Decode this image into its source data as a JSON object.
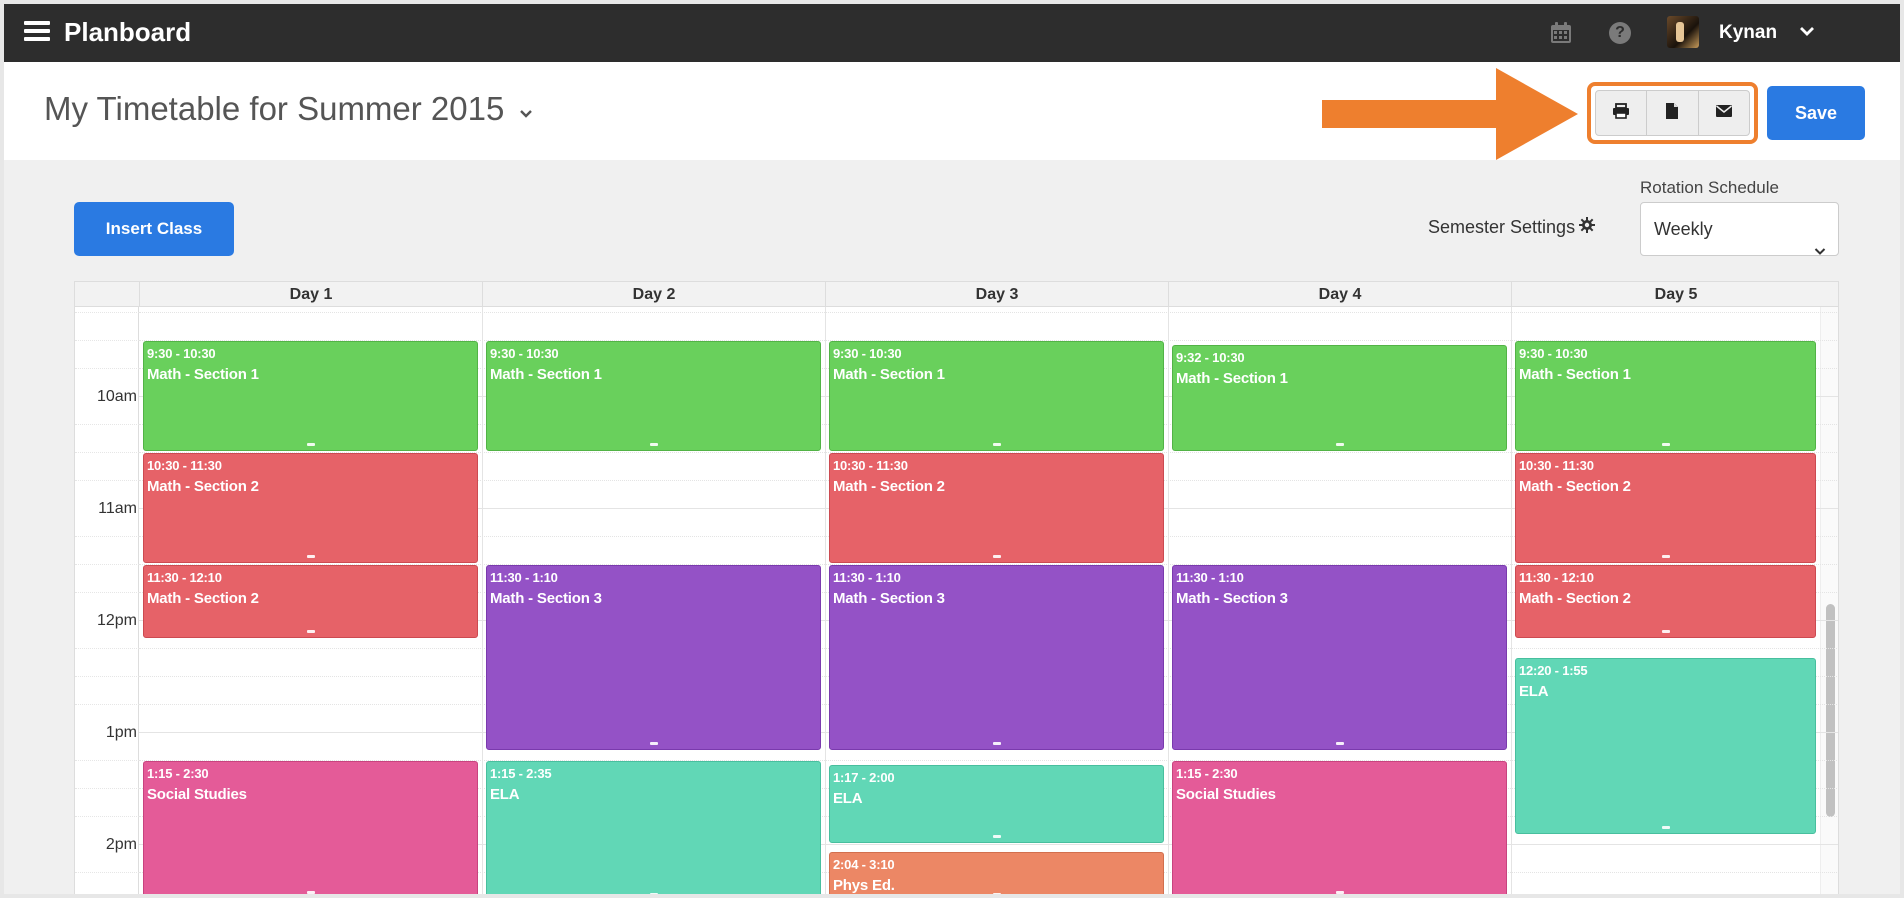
{
  "app": {
    "brand": "Planboard",
    "user_name": "Kynan"
  },
  "header": {
    "title": "My Timetable for Summer 2015",
    "save_label": "Save"
  },
  "toolbar": {
    "print_icon": "print-icon",
    "document_icon": "document-icon",
    "email_icon": "email-icon"
  },
  "controls": {
    "insert_label": "Insert Class",
    "semester_settings_label": "Semester Settings",
    "rotation_label": "Rotation Schedule",
    "rotation_value": "Weekly"
  },
  "calendar": {
    "days": [
      "Day 1",
      "Day 2",
      "Day 3",
      "Day 4",
      "Day 5"
    ],
    "hours": [
      "10am",
      "11am",
      "12pm",
      "1pm",
      "2pm"
    ],
    "events": [
      {
        "day": 0,
        "start": "9:30",
        "end": "10:30",
        "time": "9:30 - 10:30",
        "name": "Math - Section 1",
        "color": "green"
      },
      {
        "day": 0,
        "start": "10:30",
        "end": "11:30",
        "time": "10:30 - 11:30",
        "name": "Math - Section 2",
        "color": "red"
      },
      {
        "day": 0,
        "start": "11:30",
        "end": "12:10",
        "time": "11:30 - 12:10",
        "name": "Math - Section 2",
        "color": "red"
      },
      {
        "day": 0,
        "start": "13:15",
        "end": "14:30",
        "time": "1:15 - 2:30",
        "name": "Social Studies",
        "color": "pink"
      },
      {
        "day": 1,
        "start": "9:30",
        "end": "10:30",
        "time": "9:30 - 10:30",
        "name": "Math - Section 1",
        "color": "green"
      },
      {
        "day": 1,
        "start": "11:30",
        "end": "13:10",
        "time": "11:30 - 1:10",
        "name": "Math - Section 3",
        "color": "purple"
      },
      {
        "day": 1,
        "start": "13:15",
        "end": "14:35",
        "time": "1:15 - 2:35",
        "name": "ELA",
        "color": "teal"
      },
      {
        "day": 2,
        "start": "9:30",
        "end": "10:30",
        "time": "9:30 - 10:30",
        "name": "Math - Section 1",
        "color": "green"
      },
      {
        "day": 2,
        "start": "10:30",
        "end": "11:30",
        "time": "10:30 - 11:30",
        "name": "Math - Section 2",
        "color": "red"
      },
      {
        "day": 2,
        "start": "11:30",
        "end": "13:10",
        "time": "11:30 - 1:10",
        "name": "Math - Section 3",
        "color": "purple"
      },
      {
        "day": 2,
        "start": "13:17",
        "end": "14:00",
        "time": "1:17 - 2:00",
        "name": "ELA",
        "color": "teal"
      },
      {
        "day": 2,
        "start": "14:04",
        "end": "15:10",
        "time": "2:04 - 3:10",
        "name": "Phys Ed.",
        "color": "orange"
      },
      {
        "day": 3,
        "start": "9:32",
        "end": "10:30",
        "time": "9:32 - 10:30",
        "name": "Math - Section 1",
        "color": "green"
      },
      {
        "day": 3,
        "start": "11:30",
        "end": "13:10",
        "time": "11:30 - 1:10",
        "name": "Math - Section 3",
        "color": "purple"
      },
      {
        "day": 3,
        "start": "13:15",
        "end": "14:30",
        "time": "1:15 - 2:30",
        "name": "Social Studies",
        "color": "pink"
      },
      {
        "day": 4,
        "start": "9:30",
        "end": "10:30",
        "time": "9:30 - 10:30",
        "name": "Math - Section 1",
        "color": "green"
      },
      {
        "day": 4,
        "start": "10:30",
        "end": "11:30",
        "time": "10:30 - 11:30",
        "name": "Math - Section 2",
        "color": "red"
      },
      {
        "day": 4,
        "start": "11:30",
        "end": "12:10",
        "time": "11:30 - 12:10",
        "name": "Math - Section 2",
        "color": "red"
      },
      {
        "day": 4,
        "start": "12:20",
        "end": "13:55",
        "time": "12:20 - 1:55",
        "name": "ELA",
        "color": "teal"
      }
    ]
  },
  "colors": {
    "accent": "#2a7ae2",
    "highlight": "#ee7f2e",
    "topbar": "#2d2d2d"
  }
}
